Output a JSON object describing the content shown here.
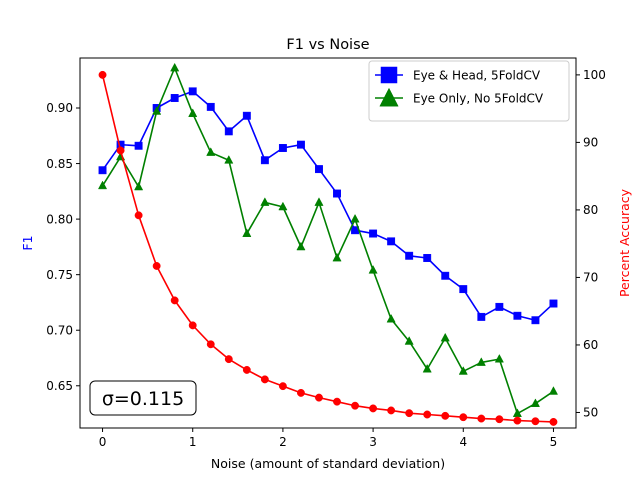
{
  "chart_data": {
    "type": "line",
    "title": "F1 vs Noise",
    "xlabel": "Noise (amount of standard deviation)",
    "ylabel_left": "F1",
    "ylabel_right": "Percent Accuracy",
    "xlim": [
      -0.25,
      5.25
    ],
    "ylim_left": [
      0.612,
      0.945
    ],
    "ylim_right": [
      47.7,
      102.5
    ],
    "x_ticks": [
      0,
      1,
      2,
      3,
      4,
      5
    ],
    "y_ticks_left": [
      0.65,
      0.7,
      0.75,
      0.8,
      0.85,
      0.9
    ],
    "y_ticks_right": [
      50,
      60,
      70,
      80,
      90,
      100
    ],
    "x": [
      0,
      0.2,
      0.4,
      0.6,
      0.8,
      1.0,
      1.2,
      1.4,
      1.6,
      1.8,
      2.0,
      2.2,
      2.4,
      2.6,
      2.8,
      3.0,
      3.2,
      3.4,
      3.6,
      3.8,
      4.0,
      4.2,
      4.4,
      4.6,
      4.8,
      5.0
    ],
    "series": [
      {
        "name": "Eye & Head, 5FoldCV",
        "axis": "left",
        "color": "#0000ff",
        "marker": "square",
        "values": [
          0.844,
          0.867,
          0.866,
          0.9,
          0.909,
          0.915,
          0.901,
          0.879,
          0.893,
          0.853,
          0.864,
          0.867,
          0.845,
          0.823,
          0.79,
          0.787,
          0.78,
          0.767,
          0.765,
          0.749,
          0.737,
          0.712,
          0.721,
          0.713,
          0.709,
          0.724
        ]
      },
      {
        "name": "Eye Only, No 5FoldCV",
        "axis": "left",
        "color": "#008000",
        "marker": "triangle",
        "values": [
          0.83,
          0.856,
          0.829,
          0.897,
          0.936,
          0.895,
          0.86,
          0.853,
          0.787,
          0.815,
          0.811,
          0.775,
          0.815,
          0.765,
          0.8,
          0.754,
          0.71,
          0.69,
          0.665,
          0.693,
          0.663,
          0.671,
          0.674,
          0.625,
          0.634,
          0.645
        ]
      },
      {
        "name": "",
        "axis": "right",
        "color": "#ff0000",
        "marker": "circle",
        "values": [
          100,
          88.8,
          79.2,
          71.7,
          66.6,
          62.9,
          60.1,
          57.9,
          56.3,
          54.9,
          53.9,
          52.9,
          52.2,
          51.6,
          51.0,
          50.6,
          50.3,
          49.9,
          49.7,
          49.5,
          49.3,
          49.1,
          49.0,
          48.8,
          48.7,
          48.6
        ]
      }
    ],
    "legend": "top-right",
    "annotation": "σ=0.115",
    "grid": false
  }
}
